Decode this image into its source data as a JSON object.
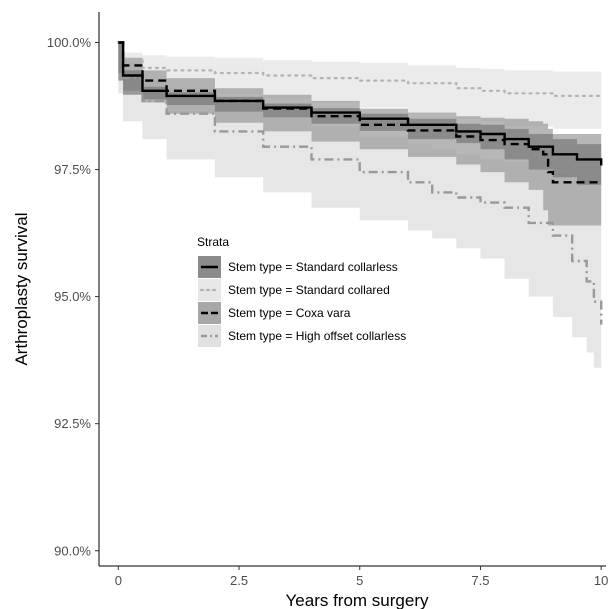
{
  "chart_data": {
    "type": "line",
    "title": "",
    "xlabel": "Years from surgery",
    "ylabel": "Arthroplasty survival",
    "xlim": [
      -0.4,
      10.1
    ],
    "ylim": [
      89.7,
      100.6
    ],
    "x_ticks": [
      0,
      2.5,
      5,
      7.5,
      10
    ],
    "x_tick_labels": [
      "0",
      "2.5",
      "5",
      "7.5",
      "10"
    ],
    "y_ticks": [
      90,
      92.5,
      95,
      97.5,
      100
    ],
    "y_tick_labels": [
      "90.0%",
      "92.5%",
      "95.0%",
      "97.5%",
      "100.0%"
    ],
    "grid": false,
    "legend": {
      "title": "Strata",
      "position": "center-left"
    },
    "series": [
      {
        "name": "Stem type = Standard collarless",
        "line_color": "#000000",
        "dash": "solid",
        "band_color": "#777777",
        "points": [
          [
            0,
            100
          ],
          [
            0.1,
            99.35
          ],
          [
            0.5,
            99.05
          ],
          [
            1,
            98.95
          ],
          [
            2,
            98.85
          ],
          [
            3,
            98.72
          ],
          [
            4,
            98.62
          ],
          [
            5,
            98.5
          ],
          [
            6,
            98.38
          ],
          [
            7,
            98.25
          ],
          [
            7.5,
            98.2
          ],
          [
            8,
            98.1
          ],
          [
            8.5,
            97.95
          ],
          [
            9,
            97.8
          ],
          [
            9.5,
            97.7
          ],
          [
            10,
            97.58
          ]
        ],
        "lower": [
          [
            0,
            99.95
          ],
          [
            0.1,
            99.25
          ],
          [
            0.5,
            98.97
          ],
          [
            1,
            98.88
          ],
          [
            2,
            98.77
          ],
          [
            3,
            98.64
          ],
          [
            4,
            98.53
          ],
          [
            5,
            98.4
          ],
          [
            6,
            98.26
          ],
          [
            7,
            98.1
          ],
          [
            7.5,
            98.02
          ],
          [
            8,
            97.9
          ],
          [
            8.5,
            97.7
          ],
          [
            9,
            97.5
          ],
          [
            9.5,
            97.35
          ],
          [
            10,
            97.2
          ]
        ],
        "upper": [
          [
            0,
            100
          ],
          [
            0.1,
            99.45
          ],
          [
            0.5,
            99.13
          ],
          [
            1,
            99.02
          ],
          [
            2,
            98.93
          ],
          [
            3,
            98.8
          ],
          [
            4,
            98.71
          ],
          [
            5,
            98.6
          ],
          [
            6,
            98.5
          ],
          [
            7,
            98.4
          ],
          [
            7.5,
            98.38
          ],
          [
            8,
            98.3
          ],
          [
            8.5,
            98.2
          ],
          [
            9,
            98.1
          ],
          [
            9.5,
            98.0
          ],
          [
            10,
            97.95
          ]
        ]
      },
      {
        "name": "Stem type = Standard collared",
        "line_color": "#b3b3b3",
        "dash": "dotted",
        "band_color": "#e3e3e3",
        "points": [
          [
            0,
            100
          ],
          [
            0.1,
            99.65
          ],
          [
            0.5,
            99.5
          ],
          [
            1,
            99.45
          ],
          [
            2,
            99.4
          ],
          [
            3,
            99.35
          ],
          [
            4,
            99.3
          ],
          [
            5,
            99.25
          ],
          [
            6,
            99.2
          ],
          [
            7,
            99.1
          ],
          [
            7.5,
            99.05
          ],
          [
            8,
            99.0
          ],
          [
            9,
            98.95
          ],
          [
            10,
            98.95
          ]
        ],
        "lower": [
          [
            0,
            99.95
          ],
          [
            0.1,
            99.45
          ],
          [
            0.5,
            99.25
          ],
          [
            1,
            99.15
          ],
          [
            2,
            99.05
          ],
          [
            3,
            98.98
          ],
          [
            4,
            98.9
          ],
          [
            5,
            98.82
          ],
          [
            6,
            98.72
          ],
          [
            7,
            98.6
          ],
          [
            7.5,
            98.5
          ],
          [
            8,
            98.45
          ],
          [
            9,
            98.35
          ],
          [
            10,
            98.3
          ]
        ],
        "upper": [
          [
            0,
            100
          ],
          [
            0.1,
            99.8
          ],
          [
            0.5,
            99.75
          ],
          [
            1,
            99.72
          ],
          [
            2,
            99.7
          ],
          [
            3,
            99.65
          ],
          [
            4,
            99.62
          ],
          [
            5,
            99.6
          ],
          [
            6,
            99.55
          ],
          [
            7,
            99.5
          ],
          [
            7.5,
            99.48
          ],
          [
            8,
            99.45
          ],
          [
            9,
            99.43
          ],
          [
            10,
            99.43
          ]
        ]
      },
      {
        "name": "Stem type = Coxa vara",
        "line_color": "#000000",
        "dash": "dashed",
        "band_color": "#999999",
        "points": [
          [
            0,
            100
          ],
          [
            0.1,
            99.55
          ],
          [
            0.5,
            99.25
          ],
          [
            1,
            99.05
          ],
          [
            2,
            98.85
          ],
          [
            3,
            98.7
          ],
          [
            4,
            98.55
          ],
          [
            5,
            98.38
          ],
          [
            6,
            98.27
          ],
          [
            7,
            98.15
          ],
          [
            7.5,
            98.08
          ],
          [
            8,
            98.0
          ],
          [
            8.5,
            97.9
          ],
          [
            8.8,
            97.8
          ],
          [
            8.9,
            97.45
          ],
          [
            9,
            97.25
          ],
          [
            10,
            97.25
          ]
        ],
        "lower": [
          [
            0,
            99.9
          ],
          [
            0.1,
            99.4
          ],
          [
            0.5,
            99.05
          ],
          [
            1,
            98.82
          ],
          [
            2,
            98.6
          ],
          [
            3,
            98.42
          ],
          [
            4,
            98.25
          ],
          [
            5,
            98.05
          ],
          [
            6,
            97.9
          ],
          [
            7,
            97.75
          ],
          [
            7.5,
            97.6
          ],
          [
            8,
            97.45
          ],
          [
            8.5,
            97.25
          ],
          [
            8.8,
            97.1
          ],
          [
            8.9,
            96.7
          ],
          [
            9,
            96.4
          ],
          [
            10,
            96.4
          ]
        ],
        "upper": [
          [
            0,
            100
          ],
          [
            0.1,
            99.7
          ],
          [
            0.5,
            99.45
          ],
          [
            1,
            99.3
          ],
          [
            2,
            99.1
          ],
          [
            3,
            98.97
          ],
          [
            4,
            98.85
          ],
          [
            5,
            98.7
          ],
          [
            6,
            98.62
          ],
          [
            7,
            98.55
          ],
          [
            7.5,
            98.52
          ],
          [
            8,
            98.5
          ],
          [
            8.5,
            98.45
          ],
          [
            8.8,
            98.4
          ],
          [
            8.9,
            98.3
          ],
          [
            9,
            98.2
          ],
          [
            10,
            98.2
          ]
        ]
      },
      {
        "name": "Stem type = High offset collarless",
        "line_color": "#999999",
        "dash": "dashdot",
        "band_color": "#dcdcdc",
        "points": [
          [
            0,
            100
          ],
          [
            0.1,
            99.3
          ],
          [
            0.5,
            98.85
          ],
          [
            1,
            98.6
          ],
          [
            2,
            98.25
          ],
          [
            3,
            97.95
          ],
          [
            4,
            97.7
          ],
          [
            5,
            97.45
          ],
          [
            6,
            97.25
          ],
          [
            6.5,
            97.05
          ],
          [
            7,
            96.95
          ],
          [
            7.5,
            96.85
          ],
          [
            8,
            96.75
          ],
          [
            8.5,
            96.45
          ],
          [
            9,
            96.2
          ],
          [
            9.4,
            95.7
          ],
          [
            9.7,
            95.3
          ],
          [
            9.85,
            94.9
          ],
          [
            10,
            94.45
          ]
        ],
        "lower": [
          [
            0,
            99.9
          ],
          [
            0.1,
            99.0
          ],
          [
            0.5,
            98.45
          ],
          [
            1,
            98.1
          ],
          [
            2,
            97.7
          ],
          [
            3,
            97.35
          ],
          [
            4,
            97.05
          ],
          [
            5,
            96.75
          ],
          [
            6,
            96.5
          ],
          [
            6.5,
            96.3
          ],
          [
            7,
            96.15
          ],
          [
            7.5,
            95.95
          ],
          [
            8,
            95.75
          ],
          [
            8.5,
            95.35
          ],
          [
            9,
            95.0
          ],
          [
            9.4,
            94.6
          ],
          [
            9.7,
            94.2
          ],
          [
            9.85,
            93.9
          ],
          [
            10,
            93.6
          ]
        ],
        "upper": [
          [
            0,
            100
          ],
          [
            0.1,
            99.6
          ],
          [
            0.5,
            99.25
          ],
          [
            1,
            99.1
          ],
          [
            2,
            98.8
          ],
          [
            3,
            98.55
          ],
          [
            4,
            98.35
          ],
          [
            5,
            98.15
          ],
          [
            6,
            98.0
          ],
          [
            6.5,
            97.9
          ],
          [
            7,
            97.8
          ],
          [
            7.5,
            97.7
          ],
          [
            8,
            97.65
          ],
          [
            8.5,
            97.5
          ],
          [
            9,
            97.4
          ],
          [
            9.4,
            97.3
          ],
          [
            9.7,
            97.3
          ],
          [
            9.85,
            97.3
          ],
          [
            10,
            97.3
          ]
        ]
      }
    ]
  }
}
